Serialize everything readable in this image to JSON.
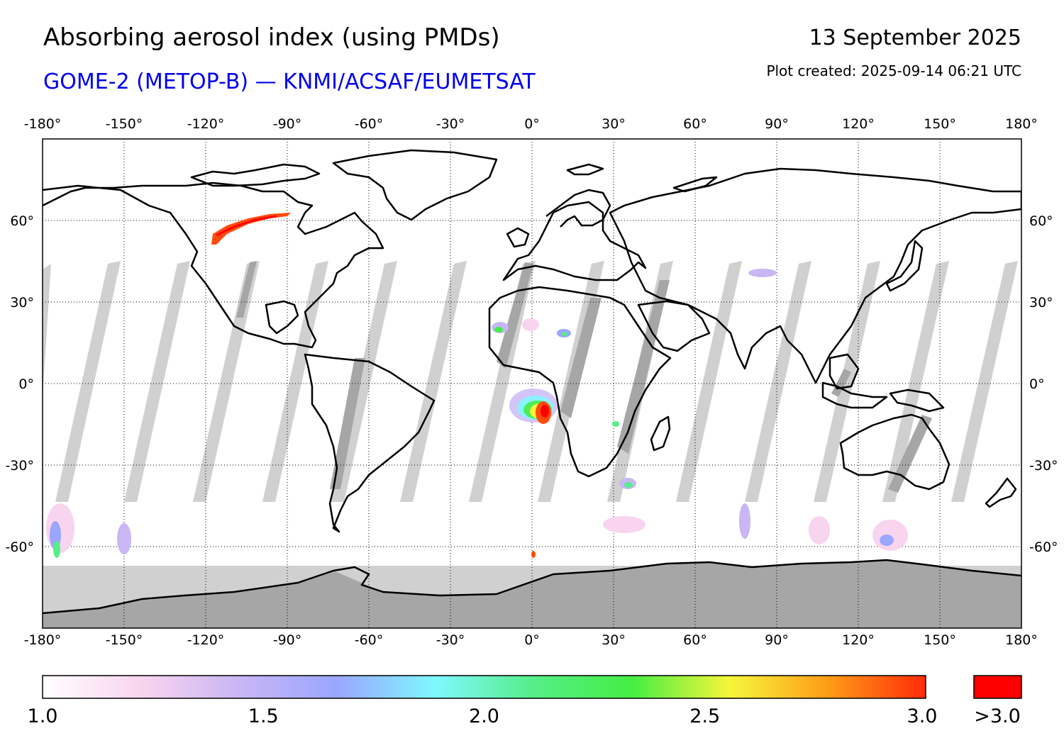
{
  "header": {
    "title": "Absorbing aerosol index (using PMDs)",
    "subtitle": "GOME-2 (METOP-B) — KNMI/ACSAF/EUMETSAT",
    "date": "13 September 2025",
    "created": "Plot created: 2025-09-14 06:21 UTC"
  },
  "map": {
    "projection": "equirectangular",
    "lon_range": [
      -180,
      180
    ],
    "lat_range": [
      -90,
      90
    ],
    "lon_ticks": [
      -180,
      -150,
      -120,
      -90,
      -60,
      -30,
      0,
      30,
      60,
      90,
      120,
      150,
      180
    ],
    "lat_ticks": [
      60,
      30,
      0,
      -30,
      -60
    ],
    "lon_tick_labels": [
      "-180°",
      "-150°",
      "-120°",
      "-90°",
      "-60°",
      "-30°",
      "0°",
      "30°",
      "60°",
      "90°",
      "120°",
      "150°",
      "180°"
    ],
    "lat_tick_labels": [
      "60°",
      "30°",
      "0°",
      "-30°",
      "-60°"
    ],
    "grid": "dotted",
    "no_data_color": "#d0d0d0",
    "overlap_color": "#a6a6a6",
    "coastline_color": "#000000"
  },
  "colorbar": {
    "min": 1.0,
    "max": 3.0,
    "tick_labels": [
      "1.0",
      "1.5",
      "2.0",
      "2.5",
      "3.0"
    ],
    "over_label": ">3.0",
    "over_color": "#ff0000",
    "stops": [
      "#ffffff",
      "#f9d4ef",
      "#c9b6f5",
      "#9aa6ff",
      "#7ff8ff",
      "#55ee88",
      "#44ee44",
      "#f6f63a",
      "#ff9d18",
      "#ff2b0a"
    ]
  },
  "highlights": [
    {
      "region": "Central Africa smoke",
      "lon": 5,
      "lat": -10,
      "level": ">3.0"
    },
    {
      "region": "Canada smoke plume",
      "lon": -110,
      "lat": 58,
      "level": ">3.0"
    },
    {
      "region": "Sahara dust",
      "lon": -10,
      "lat": 17,
      "level": 2.3
    }
  ]
}
